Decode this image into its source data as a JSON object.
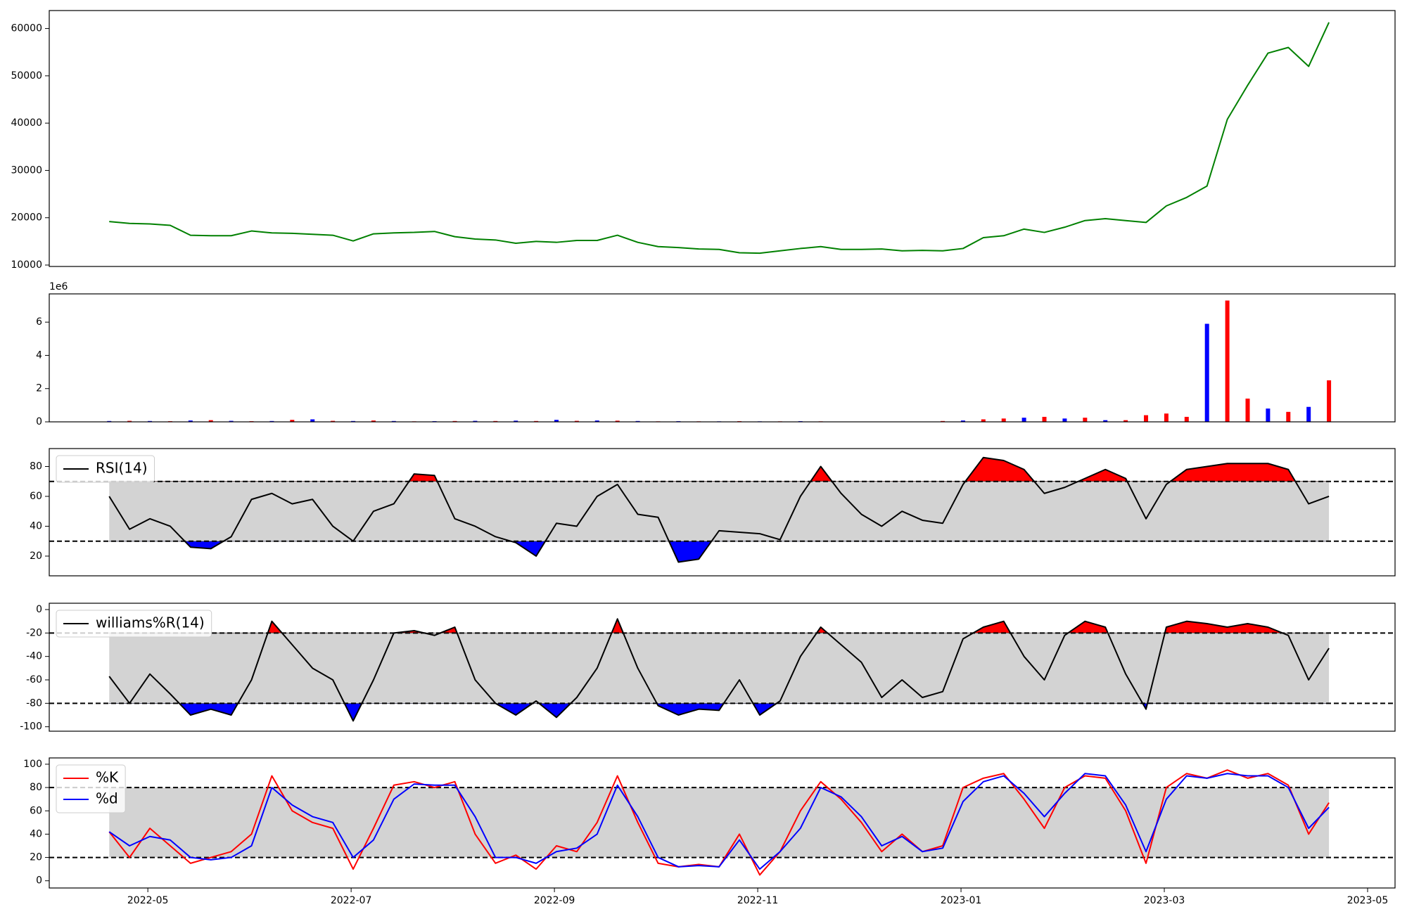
{
  "chart_data": [
    {
      "type": "line",
      "color": "#008000",
      "x": [
        3.62,
        3.82,
        4.02,
        4.22,
        4.42,
        4.62,
        4.82,
        5.02,
        5.22,
        5.42,
        5.62,
        5.82,
        6.02,
        6.22,
        6.42,
        6.62,
        6.82,
        7.02,
        7.22,
        7.42,
        7.62,
        7.82,
        8.02,
        8.22,
        8.42,
        8.62,
        8.82,
        9.02,
        9.22,
        9.42,
        9.62,
        9.82,
        10.02,
        10.22,
        10.42,
        10.62,
        10.82,
        11.02,
        11.22,
        11.42,
        11.62,
        11.82,
        12.02,
        12.22,
        12.42,
        12.62,
        12.82,
        13.02,
        13.22,
        13.42,
        13.62,
        13.82,
        14.02,
        14.22,
        14.42,
        14.62,
        14.82,
        15.02,
        15.22,
        15.42,
        15.62
      ],
      "values": [
        19200,
        18800,
        18700,
        18400,
        16300,
        16200,
        16200,
        17200,
        16800,
        16700,
        16500,
        16300,
        15100,
        16600,
        16800,
        16900,
        17100,
        16000,
        15500,
        15300,
        14600,
        15000,
        14800,
        15200,
        15200,
        16300,
        14800,
        13900,
        13700,
        13400,
        13300,
        12600,
        12500,
        13000,
        13500,
        13900,
        13300,
        13300,
        13400,
        13000,
        13100,
        13000,
        13500,
        15800,
        16200,
        17600,
        16900,
        18000,
        19400,
        19800,
        19400,
        19000,
        22500,
        24300,
        26700,
        40800,
        48000,
        54800,
        56000,
        52000,
        61300
      ],
      "xlim": [
        3.03,
        16.27
      ],
      "ylim": [
        9700,
        63800
      ],
      "yticks": [
        10000,
        20000,
        30000,
        40000,
        50000,
        60000
      ]
    },
    {
      "type": "bar",
      "y_offset_label": "1e6",
      "x": [
        3.62,
        3.82,
        4.02,
        4.22,
        4.42,
        4.62,
        4.82,
        5.02,
        5.22,
        5.42,
        5.62,
        5.82,
        6.02,
        6.22,
        6.42,
        6.62,
        6.82,
        7.02,
        7.22,
        7.42,
        7.62,
        7.82,
        8.02,
        8.22,
        8.42,
        8.62,
        8.82,
        9.02,
        9.22,
        9.42,
        9.62,
        9.82,
        10.02,
        10.22,
        10.42,
        10.62,
        10.82,
        11.02,
        11.22,
        11.42,
        11.62,
        11.82,
        12.02,
        12.22,
        12.42,
        12.62,
        12.82,
        13.02,
        13.22,
        13.42,
        13.62,
        13.82,
        14.02,
        14.22,
        14.42,
        14.62,
        14.82,
        15.02,
        15.22,
        15.42,
        15.62
      ],
      "values": [
        0.05,
        0.06,
        0.05,
        0.04,
        0.08,
        0.1,
        0.06,
        0.04,
        0.05,
        0.12,
        0.15,
        0.06,
        0.05,
        0.08,
        0.05,
        0.03,
        0.04,
        0.05,
        0.06,
        0.05,
        0.07,
        0.05,
        0.12,
        0.06,
        0.08,
        0.07,
        0.05,
        0.03,
        0.04,
        0.03,
        0.03,
        0.04,
        0.03,
        0.03,
        0.04,
        0.03,
        0.02,
        0.02,
        0.02,
        0.02,
        0.02,
        0.05,
        0.08,
        0.15,
        0.2,
        0.25,
        0.3,
        0.2,
        0.25,
        0.1,
        0.1,
        0.4,
        0.5,
        0.3,
        5.9,
        7.3,
        1.4,
        0.8,
        0.6,
        0.9,
        2.5
      ],
      "colors": [
        "#0000ff",
        "#ff0000",
        "#0000ff",
        "#ff0000",
        "#0000ff",
        "#ff0000",
        "#0000ff",
        "#ff0000",
        "#0000ff",
        "#ff0000",
        "#0000ff",
        "#ff0000",
        "#0000ff",
        "#ff0000",
        "#0000ff",
        "#ff0000",
        "#0000ff",
        "#ff0000",
        "#0000ff",
        "#ff0000",
        "#0000ff",
        "#ff0000",
        "#0000ff",
        "#ff0000",
        "#0000ff",
        "#ff0000",
        "#0000ff",
        "#ff0000",
        "#0000ff",
        "#ff0000",
        "#0000ff",
        "#ff0000",
        "#0000ff",
        "#ff0000",
        "#0000ff",
        "#ff0000",
        "#0000ff",
        "#ff0000",
        "#0000ff",
        "#ff0000",
        "#0000ff",
        "#ff0000",
        "#0000ff",
        "#ff0000",
        "#ff0000",
        "#0000ff",
        "#ff0000",
        "#0000ff",
        "#ff0000",
        "#0000ff",
        "#ff0000",
        "#ff0000",
        "#ff0000",
        "#ff0000",
        "#0000ff",
        "#ff0000",
        "#ff0000",
        "#0000ff",
        "#ff0000",
        "#0000ff",
        "#ff0000"
      ],
      "xlim": [
        3.03,
        16.27
      ],
      "ylim": [
        0,
        7.7
      ],
      "yticks": [
        0,
        2,
        4,
        6
      ]
    },
    {
      "type": "line",
      "legend": "upper left",
      "band": [
        30,
        70
      ],
      "band_color": "#d3d3d3",
      "hlines": [
        30,
        70
      ],
      "fill_above": "#ff0000",
      "fill_below": "#0000ff",
      "x": [
        3.62,
        3.82,
        4.02,
        4.22,
        4.42,
        4.62,
        4.82,
        5.02,
        5.22,
        5.42,
        5.62,
        5.82,
        6.02,
        6.22,
        6.42,
        6.62,
        6.82,
        7.02,
        7.22,
        7.42,
        7.62,
        7.82,
        8.02,
        8.22,
        8.42,
        8.62,
        8.82,
        9.02,
        9.22,
        9.42,
        9.62,
        9.82,
        10.02,
        10.22,
        10.42,
        10.62,
        10.82,
        11.02,
        11.22,
        11.42,
        11.62,
        11.82,
        12.02,
        12.22,
        12.42,
        12.62,
        12.82,
        13.02,
        13.22,
        13.42,
        13.62,
        13.82,
        14.02,
        14.22,
        14.42,
        14.62,
        14.82,
        15.02,
        15.22,
        15.42,
        15.62
      ],
      "series": [
        {
          "name": "RSI(14)",
          "color": "#000000",
          "values": [
            60,
            38,
            45,
            40,
            26,
            25,
            33,
            58,
            62,
            55,
            58,
            40,
            30,
            50,
            55,
            75,
            74,
            45,
            40,
            33,
            29,
            20,
            42,
            40,
            60,
            68,
            48,
            46,
            16,
            18,
            37,
            36,
            35,
            31,
            60,
            80,
            62,
            48,
            40,
            50,
            44,
            42,
            68,
            86,
            84,
            78,
            62,
            66,
            72,
            78,
            72,
            45,
            68,
            78,
            80,
            82,
            82,
            82,
            78,
            55,
            60
          ]
        }
      ],
      "xlim": [
        3.03,
        16.27
      ],
      "ylim": [
        6.8,
        92
      ],
      "yticks": [
        20,
        40,
        60,
        80
      ]
    },
    {
      "type": "line",
      "legend": "upper left",
      "band": [
        -80,
        -20
      ],
      "band_color": "#d3d3d3",
      "hlines": [
        -80,
        -20
      ],
      "fill_above": "#ff0000",
      "fill_below": "#0000ff",
      "x": [
        3.62,
        3.82,
        4.02,
        4.22,
        4.42,
        4.62,
        4.82,
        5.02,
        5.22,
        5.42,
        5.62,
        5.82,
        6.02,
        6.22,
        6.42,
        6.62,
        6.82,
        7.02,
        7.22,
        7.42,
        7.62,
        7.82,
        8.02,
        8.22,
        8.42,
        8.62,
        8.82,
        9.02,
        9.22,
        9.42,
        9.62,
        9.82,
        10.02,
        10.22,
        10.42,
        10.62,
        10.82,
        11.02,
        11.22,
        11.42,
        11.62,
        11.82,
        12.02,
        12.22,
        12.42,
        12.62,
        12.82,
        13.02,
        13.22,
        13.42,
        13.62,
        13.82,
        14.02,
        14.22,
        14.42,
        14.62,
        14.82,
        15.02,
        15.22,
        15.42,
        15.62
      ],
      "series": [
        {
          "name": "williams%R(14)",
          "color": "#000000",
          "values": [
            -57,
            -80,
            -55,
            -72,
            -90,
            -85,
            -90,
            -60,
            -10,
            -30,
            -50,
            -60,
            -95,
            -60,
            -20,
            -18,
            -22,
            -15,
            -60,
            -80,
            -90,
            -78,
            -92,
            -75,
            -50,
            -8,
            -50,
            -82,
            -90,
            -85,
            -86,
            -60,
            -90,
            -78,
            -40,
            -15,
            -30,
            -45,
            -75,
            -60,
            -75,
            -70,
            -25,
            -15,
            -10,
            -40,
            -60,
            -22,
            -10,
            -15,
            -55,
            -85,
            -15,
            -10,
            -12,
            -15,
            -12,
            -15,
            -22,
            -60,
            -33
          ]
        }
      ],
      "xlim": [
        3.03,
        16.27
      ],
      "ylim": [
        -103.8,
        5.4
      ],
      "yticks": [
        -100,
        -80,
        -60,
        -40,
        -20,
        0
      ]
    },
    {
      "type": "line",
      "legend": "upper left",
      "band": [
        20,
        80
      ],
      "band_color": "#d3d3d3",
      "hlines": [
        20,
        80
      ],
      "x": [
        3.62,
        3.82,
        4.02,
        4.22,
        4.42,
        4.62,
        4.82,
        5.02,
        5.22,
        5.42,
        5.62,
        5.82,
        6.02,
        6.22,
        6.42,
        6.62,
        6.82,
        7.02,
        7.22,
        7.42,
        7.62,
        7.82,
        8.02,
        8.22,
        8.42,
        8.62,
        8.82,
        9.02,
        9.22,
        9.42,
        9.62,
        9.82,
        10.02,
        10.22,
        10.42,
        10.62,
        10.82,
        11.02,
        11.22,
        11.42,
        11.62,
        11.82,
        12.02,
        12.22,
        12.42,
        12.62,
        12.82,
        13.02,
        13.22,
        13.42,
        13.62,
        13.82,
        14.02,
        14.22,
        14.42,
        14.62,
        14.82,
        15.02,
        15.22,
        15.42,
        15.62
      ],
      "series": [
        {
          "name": "%K",
          "color": "#ff0000",
          "values": [
            42,
            20,
            45,
            30,
            15,
            20,
            25,
            40,
            90,
            60,
            50,
            45,
            10,
            45,
            82,
            85,
            80,
            85,
            40,
            15,
            22,
            10,
            30,
            25,
            50,
            90,
            50,
            15,
            12,
            14,
            12,
            40,
            5,
            25,
            60,
            85,
            70,
            50,
            25,
            40,
            25,
            30,
            80,
            88,
            92,
            70,
            45,
            80,
            90,
            88,
            60,
            15,
            80,
            92,
            88,
            95,
            88,
            92,
            82,
            40,
            67
          ]
        },
        {
          "name": "%d",
          "color": "#0000ff",
          "values": [
            42,
            30,
            38,
            35,
            20,
            18,
            20,
            30,
            80,
            65,
            55,
            50,
            20,
            35,
            70,
            83,
            82,
            82,
            55,
            20,
            20,
            15,
            25,
            28,
            40,
            82,
            55,
            20,
            12,
            13,
            12,
            35,
            10,
            25,
            45,
            80,
            72,
            55,
            30,
            38,
            25,
            28,
            68,
            85,
            90,
            75,
            55,
            75,
            92,
            90,
            65,
            25,
            70,
            90,
            88,
            92,
            90,
            90,
            80,
            45,
            63
          ]
        }
      ],
      "xlim": [
        3.03,
        16.27
      ],
      "ylim": [
        -6.2,
        105.4
      ],
      "yticks": [
        0,
        20,
        40,
        60,
        80,
        100
      ],
      "xticks": [
        {
          "value": 4,
          "label": "2022-05"
        },
        {
          "value": 6,
          "label": "2022-07"
        },
        {
          "value": 8,
          "label": "2022-09"
        },
        {
          "value": 10,
          "label": "2022-11"
        },
        {
          "value": 12,
          "label": "2023-01"
        },
        {
          "value": 14,
          "label": "2023-03"
        },
        {
          "value": 16,
          "label": "2023-05"
        }
      ]
    }
  ]
}
